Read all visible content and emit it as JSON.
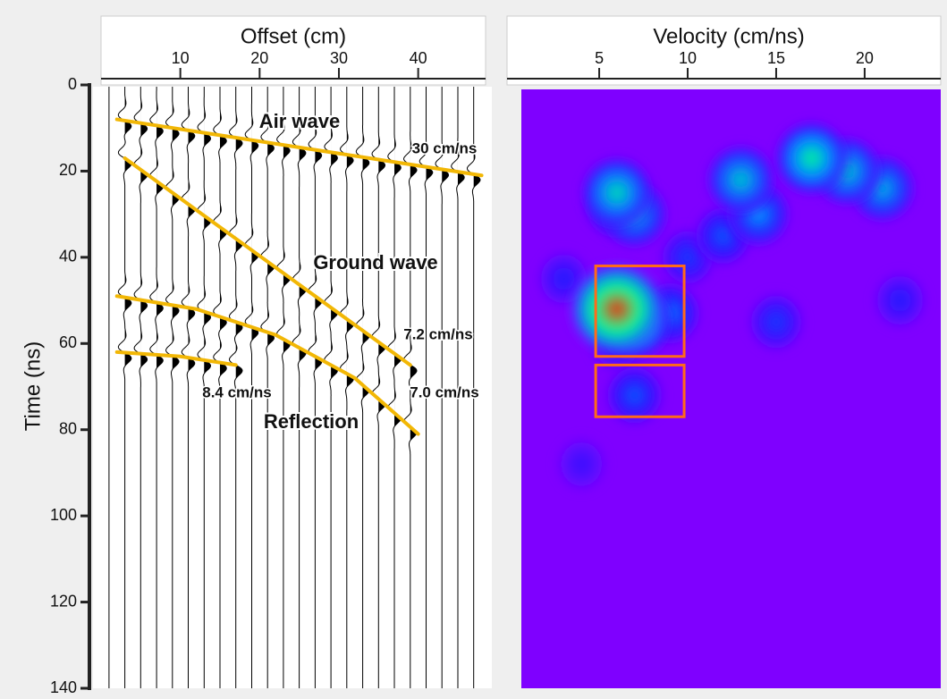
{
  "chart_data": [
    {
      "type": "wiggle",
      "xlabel": "Offset (cm)",
      "ylabel": "Time (ns)",
      "xlim": [
        0,
        48.5
      ],
      "xticks": [
        10,
        20,
        30,
        40
      ],
      "ylim": [
        0,
        140
      ],
      "yticks": [
        0,
        20,
        40,
        60,
        80,
        100,
        120,
        140
      ],
      "trace_offsets": [
        1,
        3,
        5,
        7,
        9,
        11,
        13,
        15,
        17,
        19,
        21,
        23,
        25,
        27,
        29,
        31,
        33,
        35,
        37,
        39,
        41,
        43,
        45,
        47
      ],
      "annotations": [
        "Air wave",
        "Ground wave",
        "Reflection"
      ],
      "series": [
        {
          "name": "30 cm/ns",
          "color": "#f2b705",
          "x": [
            2,
            48
          ],
          "y": [
            8,
            21
          ]
        },
        {
          "name": "7.2 cm/ns",
          "color": "#f2b705",
          "x": [
            3,
            39
          ],
          "y": [
            17,
            65
          ]
        },
        {
          "name": "7.0 cm/ns",
          "color": "#f2b705",
          "x": [
            2,
            12,
            22,
            32,
            40
          ],
          "y": [
            49,
            52,
            58,
            68,
            81
          ]
        },
        {
          "name": "8.4 cm/ns",
          "color": "#f2b705",
          "x": [
            2,
            10,
            17
          ],
          "y": [
            62,
            63,
            65
          ]
        }
      ]
    },
    {
      "type": "heatmap",
      "xlabel": "Velocity (cm/ns)",
      "xlim": [
        0.6,
        24.3
      ],
      "xticks": [
        5,
        10,
        15,
        20
      ],
      "ylim": [
        0,
        140
      ],
      "colormap": [
        "#7f00ff",
        "#1a1aff",
        "#00a8ff",
        "#00ff90",
        "#ffff00",
        "#ff2000"
      ],
      "peaks": {
        "v": [
          6,
          3,
          22,
          10,
          15,
          7,
          4,
          12,
          6,
          9,
          14,
          7,
          13,
          19,
          21,
          6,
          7,
          17,
          6
        ],
        "t": [
          60,
          45,
          50,
          40,
          55,
          72,
          88,
          35,
          28,
          53,
          30,
          30,
          22,
          20,
          24,
          25,
          55,
          17,
          52
        ],
        "amplitude": [
          0.2,
          0.2,
          0.2,
          0.25,
          0.25,
          0.3,
          0.15,
          0.3,
          0.4,
          0.35,
          0.4,
          0.45,
          0.5,
          0.5,
          0.45,
          0.55,
          0.6,
          0.6,
          1.0
        ]
      },
      "boxes": [
        {
          "vlim": [
            4.8,
            9.8
          ],
          "tlim": [
            42,
            63
          ],
          "color": "#ff6a1a"
        },
        {
          "vlim": [
            4.8,
            9.8
          ],
          "tlim": [
            65,
            77
          ],
          "color": "#ff6a1a"
        }
      ]
    }
  ]
}
